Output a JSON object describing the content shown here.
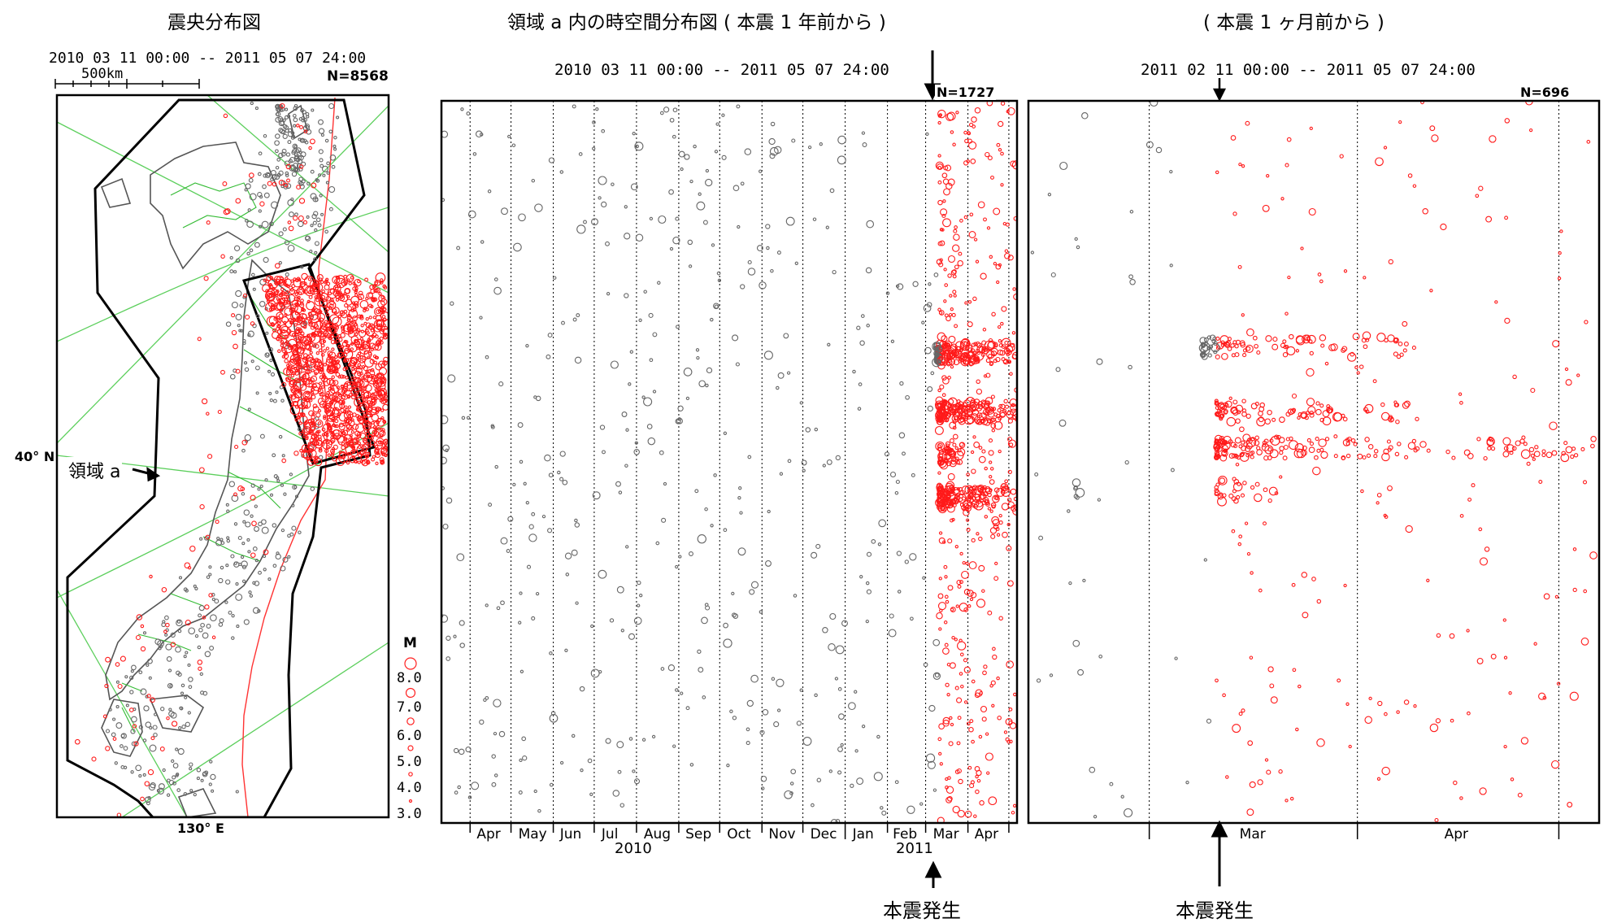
{
  "map": {
    "title": "震央分布図",
    "period": "2010 03 11 00:00 -- 2011 05 07 24:00",
    "scale_label": "500km",
    "count": "N=8568",
    "lat_label": "40° N",
    "lon_label": "130° E",
    "region_label": "領域 a",
    "legend": {
      "title": "M",
      "magnitudes": [
        "8.0",
        "7.0",
        "6.0",
        "5.0",
        "4.0",
        "3.0"
      ]
    }
  },
  "mid": {
    "title": "領域 a 内の時空間分布図 ( 本震 1 年前から )",
    "period": "2010 03 11 00:00 -- 2011 05 07 24:00",
    "count": "N=1727",
    "year_labels": [
      "2010",
      "2011"
    ],
    "mainshock_label": "本震発生"
  },
  "right": {
    "title": "( 本震 1 ヶ月前から )",
    "period": "2011 02 11 00:00 -- 2011 05 07 24:00",
    "count": "N=696",
    "mainshock_label": "本震発生"
  },
  "colors": {
    "before_mainshock": "#666666",
    "after_mainshock": "#ff1a1a",
    "plate_boundary": "#ff3333",
    "prefecture_lines": "#33bb33",
    "frame": "#000000"
  },
  "chart_data": [
    {
      "type": "scatter",
      "title": "震央分布図",
      "xlabel": "",
      "ylabel": "",
      "x_ticks": [
        "130° E"
      ],
      "y_ticks": [
        "40° N"
      ],
      "series": [],
      "annotations": [
        "領域 a"
      ],
      "count": "N=8568",
      "size_legend": {
        "title": "M",
        "values": [
          8.0,
          7.0,
          6.0,
          5.0,
          4.0,
          3.0
        ]
      }
    },
    {
      "type": "scatter",
      "title": "領域 a 内の時空間分布図 ( 本震 1 年前から )",
      "xlabel": "",
      "ylabel": "",
      "x_ticks": [
        "Apr",
        "May",
        "Jun",
        "Jul",
        "Aug",
        "Sep",
        "Oct",
        "Nov",
        "Dec",
        "Jan",
        "Feb",
        "Mar",
        "Apr"
      ],
      "x_year_labels": [
        "2010",
        "2011"
      ],
      "xlim": [
        "2010-03-11",
        "2011-05-07"
      ],
      "mainshock": "2011-03-11",
      "clusters": [
        {
          "date_from": "2011-03-09",
          "date_to": "2011-05-07",
          "position": 0.35
        },
        {
          "date_from": "2011-03-11",
          "date_to": "2011-05-07",
          "position": 0.43
        },
        {
          "date_from": "2011-03-11",
          "date_to": "2011-03-28",
          "position": 0.49
        },
        {
          "date_from": "2011-03-11",
          "date_to": "2011-05-07",
          "position": 0.55
        }
      ],
      "count": "N=1727"
    },
    {
      "type": "scatter",
      "title": "( 本震 1 ヶ月前から )",
      "xlabel": "",
      "ylabel": "",
      "x_ticks": [
        "Mar",
        "Apr"
      ],
      "xlim": [
        "2011-02-11",
        "2011-05-07"
      ],
      "mainshock": "2011-03-11",
      "clusters": [
        {
          "date_from": "2011-03-09",
          "date_to": "2011-04-10",
          "position": 0.34
        },
        {
          "date_from": "2011-03-11",
          "date_to": "2011-04-10",
          "position": 0.43
        },
        {
          "date_from": "2011-03-11",
          "date_to": "2011-05-07",
          "position": 0.48
        },
        {
          "date_from": "2011-03-11",
          "date_to": "2011-03-20",
          "position": 0.54
        },
        {
          "date_from": "2011-02-18",
          "date_to": "2011-02-19",
          "position": 0.54
        }
      ],
      "count": "N=696"
    }
  ]
}
